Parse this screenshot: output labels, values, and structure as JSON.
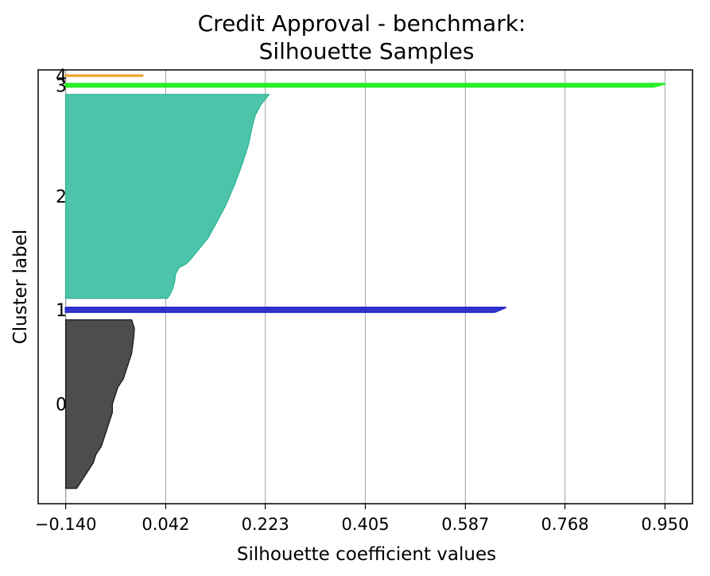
{
  "chart_data": {
    "type": "area",
    "title_line1": "Credit Approval - benchmark:",
    "title_line2": "Silhouette Samples",
    "xlabel": "Silhouette coefficient values",
    "ylabel": "Cluster label",
    "xlim": [
      -0.19,
      1.0
    ],
    "xticks": [
      -0.14,
      0.042,
      0.223,
      0.405,
      0.587,
      0.768,
      0.95
    ],
    "xtick_labels": [
      "−0.140",
      "0.042",
      "0.223",
      "0.405",
      "0.587",
      "0.768",
      "0.950"
    ],
    "grid": "vertical",
    "baseline": -0.14,
    "clusters": [
      {
        "label": "0",
        "color": "#4d4d4d",
        "edge": "#1a1a1a",
        "y_range": [
          10,
          120
        ],
        "profile": [
          [
            0.0,
            -0.12
          ],
          [
            0.05,
            -0.11
          ],
          [
            0.1,
            -0.1
          ],
          [
            0.15,
            -0.09
          ],
          [
            0.2,
            -0.085
          ],
          [
            0.25,
            -0.075
          ],
          [
            0.3,
            -0.07
          ],
          [
            0.35,
            -0.065
          ],
          [
            0.4,
            -0.06
          ],
          [
            0.45,
            -0.055
          ],
          [
            0.5,
            -0.055
          ],
          [
            0.55,
            -0.05
          ],
          [
            0.6,
            -0.045
          ],
          [
            0.65,
            -0.035
          ],
          [
            0.7,
            -0.03
          ],
          [
            0.75,
            -0.025
          ],
          [
            0.8,
            -0.02
          ],
          [
            0.85,
            -0.018
          ],
          [
            0.9,
            -0.016
          ],
          [
            0.95,
            -0.015
          ],
          [
            1.0,
            -0.02
          ]
        ]
      },
      {
        "label": "1",
        "color": "#3333cc",
        "edge": "#2a2acc",
        "y_range": [
          125,
          128
        ],
        "profile": [
          [
            0.0,
            0.64
          ],
          [
            1.0,
            0.66
          ]
        ]
      },
      {
        "label": "2",
        "color": "#4dc4aa",
        "edge": "#2bb592",
        "y_range": [
          134,
          267
        ],
        "profile": [
          [
            0.0,
            0.045
          ],
          [
            0.02,
            0.05
          ],
          [
            0.05,
            0.055
          ],
          [
            0.08,
            0.058
          ],
          [
            0.12,
            0.06
          ],
          [
            0.15,
            0.066
          ],
          [
            0.17,
            0.08
          ],
          [
            0.2,
            0.09
          ],
          [
            0.25,
            0.105
          ],
          [
            0.3,
            0.12
          ],
          [
            0.35,
            0.13
          ],
          [
            0.4,
            0.14
          ],
          [
            0.45,
            0.15
          ],
          [
            0.5,
            0.158
          ],
          [
            0.55,
            0.166
          ],
          [
            0.6,
            0.173
          ],
          [
            0.65,
            0.18
          ],
          [
            0.7,
            0.186
          ],
          [
            0.75,
            0.192
          ],
          [
            0.8,
            0.196
          ],
          [
            0.85,
            0.2
          ],
          [
            0.9,
            0.205
          ],
          [
            0.95,
            0.215
          ],
          [
            1.0,
            0.23
          ]
        ]
      },
      {
        "label": "3",
        "color": "#33ee33",
        "edge": "#22ee22",
        "y_range": [
          272,
          274
        ],
        "profile": [
          [
            0.0,
            0.93
          ],
          [
            1.0,
            0.95
          ]
        ]
      },
      {
        "label": "4",
        "color": "#f0a830",
        "edge": "#f0a830",
        "y_range": [
          279,
          279.6
        ],
        "profile": [
          [
            0.0,
            0.0
          ],
          [
            1.0,
            0.0
          ]
        ]
      }
    ]
  }
}
